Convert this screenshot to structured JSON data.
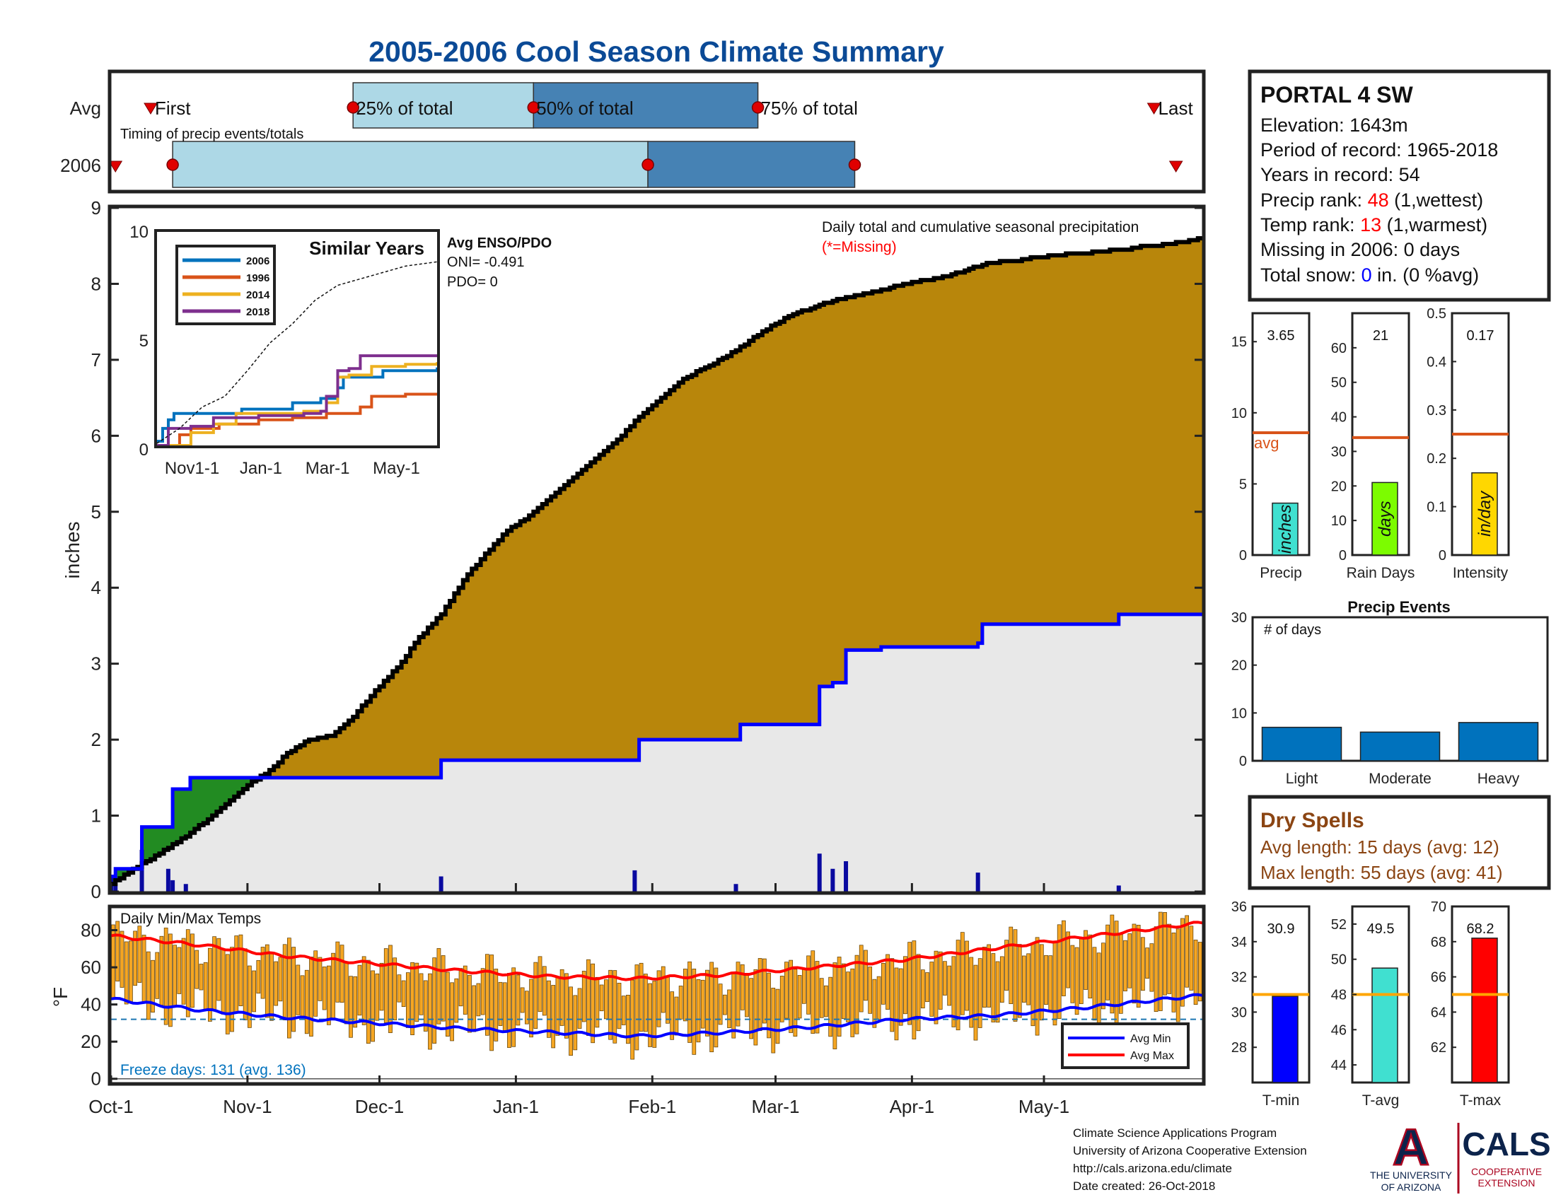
{
  "title": "2005-2006 Cool Season Climate Summary",
  "colors": {
    "title": "#0b4a96",
    "precip_avg_fill": "#b8860b",
    "precip_2006_fill": "#e8e8e8",
    "precip_ahead_fill": "#228b22",
    "obs_line": "#0000ff",
    "avg_line": "#000000",
    "bar_avg_line": "#d95319",
    "temp_bar": "#f5a623",
    "temp_min": "#0000ff",
    "temp_max": "#ff0000",
    "timing_light": "#add8e6",
    "timing_dark": "#4682b4",
    "event_bar": "#0072bd",
    "rank_red": "#ff0000",
    "snow_blue": "#0000ff",
    "dry_spell_brown": "#8b4513",
    "ua_navy": "#0c234b",
    "ua_red": "#ab0520",
    "freeze_text": "#0072bd",
    "precip_bar": "#40e0d0",
    "raindays_bar": "#7cfc00",
    "intensity_bar": "#ffd700",
    "tavg_bar": "#40e0d0",
    "tmin_bar": "#0000ff",
    "tmax_bar": "#ff0000",
    "temp_avg_line": "#ffa500"
  },
  "timing": {
    "row_labels": [
      "Avg",
      "2006"
    ],
    "subtitle": "Timing of precip events/totals",
    "avg_markers": {
      "first": "First",
      "p25": "25% of total",
      "p50": "50% of total",
      "p75": "75% of total",
      "last": "Last"
    }
  },
  "station": {
    "name": "PORTAL 4 SW",
    "elevation": "Elevation: 1643m",
    "period": "Period of record: 1965-2018",
    "years": "Years in record: 54",
    "precip_rank_label": "Precip rank: ",
    "precip_rank_value": "48",
    "precip_rank_note": " (1,wettest)",
    "temp_rank_label": "Temp rank: ",
    "temp_rank_value": "13",
    "temp_rank_note": " (1,warmest)",
    "missing": "Missing in 2006: 0 days",
    "snow_label": "Total snow: ",
    "snow_value": "0",
    "snow_note": " in. (0 %avg)"
  },
  "precip_panel": {
    "ylabel": "inches",
    "note": "Daily total and cumulative seasonal precipitation",
    "missing_note": "(*=Missing)"
  },
  "inset": {
    "title": "Similar Years",
    "enso_title": "Avg ENSO/PDO",
    "oni": "ONI= -0.491",
    "pdo": "PDO= 0",
    "legend": [
      "2006",
      "1996",
      "2014",
      "2018"
    ],
    "legend_colors": [
      "#0072bd",
      "#d95319",
      "#edb120",
      "#7e2f8e"
    ]
  },
  "summary_bars": [
    {
      "label": "Precip",
      "value": "3.65",
      "unit": "inches",
      "avg_label": "avg"
    },
    {
      "label": "Rain Days",
      "value": "21",
      "unit": "days"
    },
    {
      "label": "Intensity",
      "value": "0.17",
      "unit": "in/day"
    }
  ],
  "events": {
    "title": "Precip Events",
    "ylabel": "# of days"
  },
  "dry_spells": {
    "title": "Dry Spells",
    "avg": "Avg length: 15 days (avg: 12)",
    "max": "Max length: 55 days (avg: 41)"
  },
  "temp_panel": {
    "ylabel": "°F",
    "title": "Daily Min/Max Temps",
    "freeze": "Freeze days: 131 (avg. 136)",
    "legend": [
      "Avg Min",
      "Avg Max"
    ]
  },
  "temp_bars": [
    {
      "label": "T-min",
      "value": "30.9"
    },
    {
      "label": "T-avg",
      "value": "49.5"
    },
    {
      "label": "T-max",
      "value": "68.2"
    }
  ],
  "footer": {
    "line1": "Climate Science Applications Program",
    "line2": "University of Arizona Cooperative Extension",
    "line3": "http://cals.arizona.edu/climate",
    "line4": " Date created: 26-Oct-2018"
  },
  "logos": {
    "ua_letter": "A",
    "ua_line1": "THE UNIVERSITY",
    "ua_line2": "OF ARIZONA",
    "cals": "CALS",
    "cals_line1": "COOPERATIVE",
    "cals_line2": "EXTENSION"
  },
  "chart_data": [
    {
      "id": "timing",
      "type": "bar",
      "title": "Timing of precip events/totals",
      "categories": [
        "Avg",
        "2006"
      ],
      "x_unit": "day of season (Oct-1 = 0)",
      "avg": {
        "first": 9,
        "p25": 55,
        "p50": 96,
        "p75": 147,
        "last": 237
      },
      "y2006": {
        "first": 1,
        "start": 14,
        "p50": 122,
        "p75": 169,
        "last": 242
      }
    },
    {
      "id": "cumulative_precip",
      "type": "area",
      "ylabel": "inches",
      "ylim": [
        0,
        9
      ],
      "xlim": [
        0,
        248
      ],
      "x_ticks": [
        "Oct-1",
        "Nov-1",
        "Dec-1",
        "Jan-1",
        "Feb-1",
        "Mar-1",
        "Apr-1",
        "May-1"
      ],
      "x_tick_days": [
        0,
        31,
        61,
        92,
        123,
        151,
        182,
        212
      ],
      "y_ticks": [
        0,
        1,
        2,
        3,
        4,
        5,
        6,
        7,
        8,
        9
      ],
      "series": [
        {
          "name": "Average cumulative",
          "x": [
            0,
            8,
            15,
            22,
            31,
            36,
            40,
            45,
            50,
            55,
            60,
            65,
            70,
            75,
            80,
            85,
            90,
            95,
            100,
            105,
            110,
            115,
            120,
            125,
            130,
            135,
            140,
            145,
            150,
            155,
            160,
            165,
            170,
            175,
            180,
            185,
            190,
            195,
            200,
            205,
            210,
            215,
            220,
            225,
            230,
            235,
            240,
            248
          ],
          "y": [
            0.1,
            0.4,
            0.65,
            0.95,
            1.4,
            1.6,
            1.82,
            2.0,
            2.05,
            2.3,
            2.65,
            2.95,
            3.35,
            3.65,
            4.1,
            4.45,
            4.75,
            4.95,
            5.2,
            5.45,
            5.7,
            5.95,
            6.25,
            6.5,
            6.75,
            6.9,
            7.05,
            7.25,
            7.45,
            7.6,
            7.7,
            7.8,
            7.85,
            7.92,
            8.0,
            8.05,
            8.1,
            8.2,
            8.28,
            8.3,
            8.35,
            8.38,
            8.4,
            8.43,
            8.45,
            8.5,
            8.52,
            8.6
          ]
        },
        {
          "name": "2006 cumulative",
          "x": [
            0,
            1,
            6,
            7,
            13,
            14,
            17,
            18,
            33,
            34,
            74,
            75,
            119,
            120,
            142,
            143,
            160,
            161,
            163,
            164,
            166,
            167,
            174,
            175,
            197,
            198,
            212,
            213,
            228,
            229,
            248
          ],
          "y": [
            0.2,
            0.3,
            0.3,
            0.85,
            0.85,
            1.35,
            1.35,
            1.5,
            1.5,
            1.5,
            1.5,
            1.73,
            1.73,
            2.0,
            2.0,
            2.2,
            2.2,
            2.7,
            2.7,
            2.75,
            2.75,
            3.18,
            3.18,
            3.22,
            3.27,
            3.52,
            3.52,
            3.52,
            3.52,
            3.65,
            3.65
          ]
        },
        {
          "name": "Daily precip",
          "x": [
            0,
            1,
            7,
            13,
            14,
            17,
            75,
            119,
            142,
            161,
            164,
            167,
            197,
            229
          ],
          "y": [
            0.2,
            0.12,
            0.55,
            0.3,
            0.15,
            0.1,
            0.2,
            0.28,
            0.1,
            0.5,
            0.3,
            0.4,
            0.25,
            0.08
          ]
        }
      ]
    },
    {
      "id": "similar_years",
      "type": "line",
      "title": "Similar Years",
      "ylim": [
        0,
        10
      ],
      "x_ticks": [
        "Nov1-1",
        "Jan-1",
        "Mar-1",
        "May-1"
      ],
      "x_tick_days": [
        31,
        92,
        151,
        212
      ],
      "series": [
        {
          "name": "2006",
          "x": [
            0,
            5,
            10,
            15,
            35,
            40,
            75,
            120,
            145,
            160,
            165,
            175,
            200,
            230,
            248
          ],
          "y": [
            0.2,
            0.8,
            1.2,
            1.5,
            1.5,
            1.5,
            1.7,
            2.0,
            2.2,
            2.7,
            3.2,
            3.2,
            3.5,
            3.5,
            3.65
          ]
        },
        {
          "name": "1996",
          "x": [
            0,
            20,
            30,
            55,
            90,
            120,
            150,
            180,
            190,
            220,
            248
          ],
          "y": [
            0.0,
            0.5,
            0.8,
            1.0,
            1.2,
            1.3,
            1.5,
            1.8,
            2.3,
            2.4,
            2.4
          ]
        },
        {
          "name": "2014",
          "x": [
            0,
            25,
            30,
            50,
            70,
            110,
            130,
            150,
            155,
            160,
            170,
            190,
            220,
            248
          ],
          "y": [
            0.0,
            0.0,
            0.6,
            1.0,
            1.5,
            1.5,
            1.6,
            2.0,
            2.0,
            3.2,
            3.3,
            3.7,
            3.8,
            3.9
          ]
        },
        {
          "name": "2018",
          "x": [
            0,
            10,
            30,
            50,
            90,
            130,
            145,
            150,
            160,
            170,
            180,
            205,
            248
          ],
          "y": [
            0.0,
            0.8,
            0.9,
            1.3,
            1.4,
            1.5,
            1.6,
            2.3,
            3.5,
            3.6,
            4.2,
            4.2,
            4.2
          ]
        },
        {
          "name": "Average",
          "x": [
            0,
            20,
            40,
            60,
            80,
            100,
            120,
            140,
            160,
            180,
            200,
            220,
            248
          ],
          "y": [
            0.1,
            0.8,
            1.8,
            2.3,
            3.5,
            4.8,
            5.7,
            6.8,
            7.5,
            7.8,
            8.1,
            8.4,
            8.6
          ]
        }
      ]
    },
    {
      "id": "summary_precip",
      "type": "bar",
      "categories": [
        "Precip",
        "Rain Days",
        "Intensity"
      ],
      "values": [
        3.65,
        21,
        0.17
      ],
      "averages": [
        8.6,
        34,
        0.25
      ],
      "ylims": [
        [
          0,
          17
        ],
        [
          0,
          70
        ],
        [
          0,
          0.5
        ]
      ],
      "y_ticks": [
        [
          0,
          5,
          10,
          15
        ],
        [
          0,
          10,
          20,
          30,
          40,
          50,
          60
        ],
        [
          0,
          0.1,
          0.2,
          0.3,
          0.4,
          0.5
        ]
      ]
    },
    {
      "id": "precip_events",
      "type": "bar",
      "title": "Precip Events",
      "ylabel": "# of days",
      "categories": [
        "Light",
        "Moderate",
        "Heavy"
      ],
      "values": [
        7,
        6,
        8
      ],
      "ylim": [
        0,
        30
      ],
      "y_ticks": [
        0,
        10,
        20,
        30
      ]
    },
    {
      "id": "daily_temps",
      "type": "bar",
      "title": "Daily Min/Max Temps",
      "ylabel": "°F",
      "ylim": [
        -2,
        92
      ],
      "y_ticks": [
        0,
        20,
        40,
        60,
        80
      ],
      "freeze_line": 32,
      "series": [
        {
          "name": "Avg Min",
          "x": [
            0,
            20,
            40,
            60,
            80,
            100,
            120,
            140,
            160,
            180,
            200,
            220,
            248
          ],
          "y": [
            43,
            37,
            33,
            30,
            27,
            25,
            23,
            25,
            28,
            32,
            34,
            38,
            45
          ]
        },
        {
          "name": "Avg Max",
          "x": [
            0,
            20,
            40,
            60,
            80,
            100,
            120,
            140,
            160,
            180,
            200,
            220,
            248
          ],
          "y": [
            77,
            72,
            66,
            62,
            58,
            55,
            54,
            56,
            60,
            64,
            70,
            76,
            84
          ]
        }
      ]
    },
    {
      "id": "summary_temps",
      "type": "bar",
      "categories": [
        "T-min",
        "T-avg",
        "T-max"
      ],
      "values": [
        30.9,
        49.5,
        68.2
      ],
      "averages": [
        31.0,
        48.0,
        65.0
      ],
      "ylims": [
        [
          26,
          36
        ],
        [
          43,
          53
        ],
        [
          60,
          70
        ]
      ],
      "y_ticks": [
        [
          28,
          30,
          32,
          34,
          36
        ],
        [
          44,
          46,
          48,
          50,
          52
        ],
        [
          62,
          64,
          66,
          68,
          70
        ]
      ]
    }
  ]
}
